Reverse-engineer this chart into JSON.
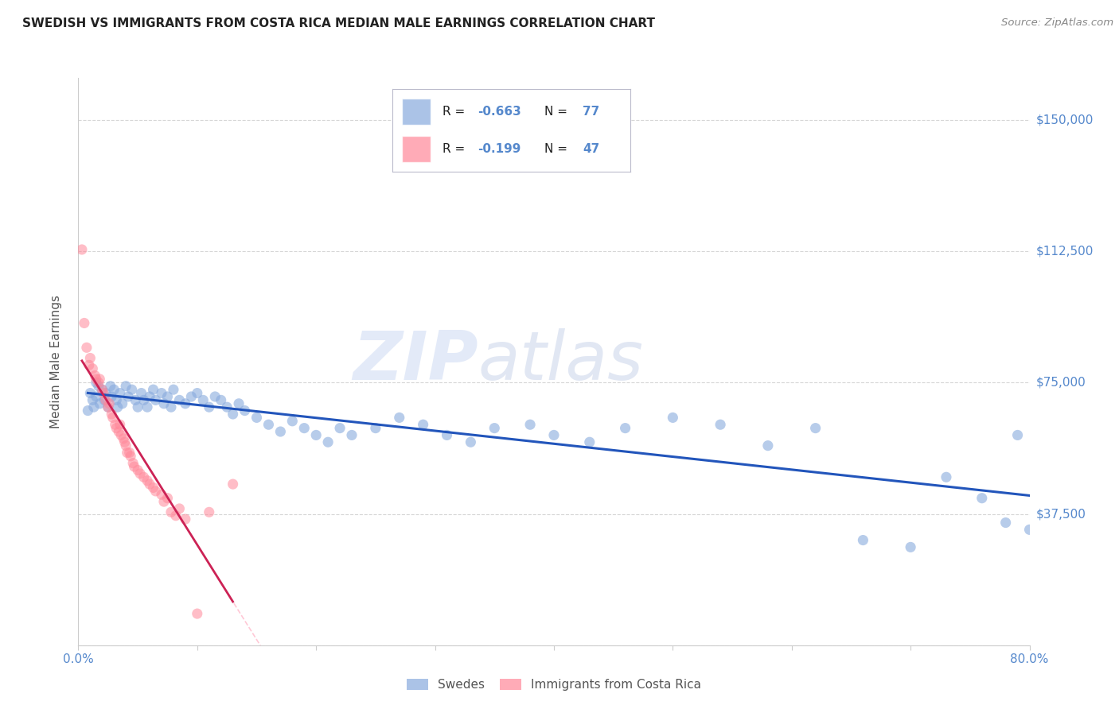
{
  "title": "SWEDISH VS IMMIGRANTS FROM COSTA RICA MEDIAN MALE EARNINGS CORRELATION CHART",
  "source": "Source: ZipAtlas.com",
  "ylabel": "Median Male Earnings",
  "watermark_zip": "ZIP",
  "watermark_atlas": "atlas",
  "xlim": [
    0.0,
    0.8
  ],
  "ylim": [
    0,
    162000
  ],
  "yticks": [
    0,
    37500,
    75000,
    112500,
    150000
  ],
  "ytick_labels": [
    "",
    "$37,500",
    "$75,000",
    "$112,500",
    "$150,000"
  ],
  "background_color": "#ffffff",
  "grid_color": "#cccccc",
  "blue_color": "#88aadd",
  "pink_color": "#ff8899",
  "blue_line_color": "#2255bb",
  "pink_line_color": "#cc2255",
  "pink_dashed_color": "#ffbbcc",
  "label_color": "#5588cc",
  "title_color": "#222222",
  "source_color": "#888888",
  "ylabel_color": "#555555",
  "legend_labels": [
    "Swedes",
    "Immigrants from Costa Rica"
  ],
  "swedes_x": [
    0.008,
    0.01,
    0.012,
    0.013,
    0.015,
    0.015,
    0.017,
    0.018,
    0.02,
    0.022,
    0.023,
    0.025,
    0.027,
    0.028,
    0.03,
    0.032,
    0.033,
    0.035,
    0.037,
    0.04,
    0.042,
    0.045,
    0.048,
    0.05,
    0.053,
    0.055,
    0.058,
    0.06,
    0.063,
    0.065,
    0.07,
    0.072,
    0.075,
    0.078,
    0.08,
    0.085,
    0.09,
    0.095,
    0.1,
    0.105,
    0.11,
    0.115,
    0.12,
    0.125,
    0.13,
    0.135,
    0.14,
    0.15,
    0.16,
    0.17,
    0.18,
    0.19,
    0.2,
    0.21,
    0.22,
    0.23,
    0.25,
    0.27,
    0.29,
    0.31,
    0.33,
    0.35,
    0.38,
    0.4,
    0.43,
    0.46,
    0.5,
    0.54,
    0.58,
    0.62,
    0.66,
    0.7,
    0.73,
    0.76,
    0.78,
    0.79,
    0.8
  ],
  "swedes_y": [
    67000,
    72000,
    70000,
    68000,
    75000,
    71000,
    74000,
    69000,
    73000,
    70000,
    72000,
    68000,
    74000,
    71000,
    73000,
    70000,
    68000,
    72000,
    69000,
    74000,
    71000,
    73000,
    70000,
    68000,
    72000,
    70000,
    68000,
    71000,
    73000,
    70000,
    72000,
    69000,
    71000,
    68000,
    73000,
    70000,
    69000,
    71000,
    72000,
    70000,
    68000,
    71000,
    70000,
    68000,
    66000,
    69000,
    67000,
    65000,
    63000,
    61000,
    64000,
    62000,
    60000,
    58000,
    62000,
    60000,
    62000,
    65000,
    63000,
    60000,
    58000,
    62000,
    63000,
    60000,
    58000,
    62000,
    65000,
    63000,
    57000,
    62000,
    30000,
    28000,
    48000,
    42000,
    35000,
    60000,
    33000
  ],
  "costa_rica_x": [
    0.003,
    0.005,
    0.007,
    0.009,
    0.01,
    0.012,
    0.014,
    0.015,
    0.017,
    0.018,
    0.02,
    0.021,
    0.023,
    0.025,
    0.026,
    0.028,
    0.029,
    0.031,
    0.032,
    0.034,
    0.035,
    0.036,
    0.038,
    0.039,
    0.04,
    0.041,
    0.043,
    0.044,
    0.046,
    0.047,
    0.05,
    0.052,
    0.055,
    0.058,
    0.06,
    0.063,
    0.065,
    0.07,
    0.072,
    0.075,
    0.078,
    0.082,
    0.085,
    0.09,
    0.1,
    0.11,
    0.13
  ],
  "costa_rica_y": [
    113000,
    92000,
    85000,
    80000,
    82000,
    79000,
    77000,
    76000,
    75000,
    76000,
    73000,
    72000,
    70000,
    68000,
    69000,
    66000,
    65000,
    63000,
    62000,
    61000,
    63000,
    60000,
    59000,
    58000,
    57000,
    55000,
    55000,
    54000,
    52000,
    51000,
    50000,
    49000,
    48000,
    47000,
    46000,
    45000,
    44000,
    43000,
    41000,
    42000,
    38000,
    37000,
    39000,
    36000,
    9000,
    38000,
    46000
  ]
}
